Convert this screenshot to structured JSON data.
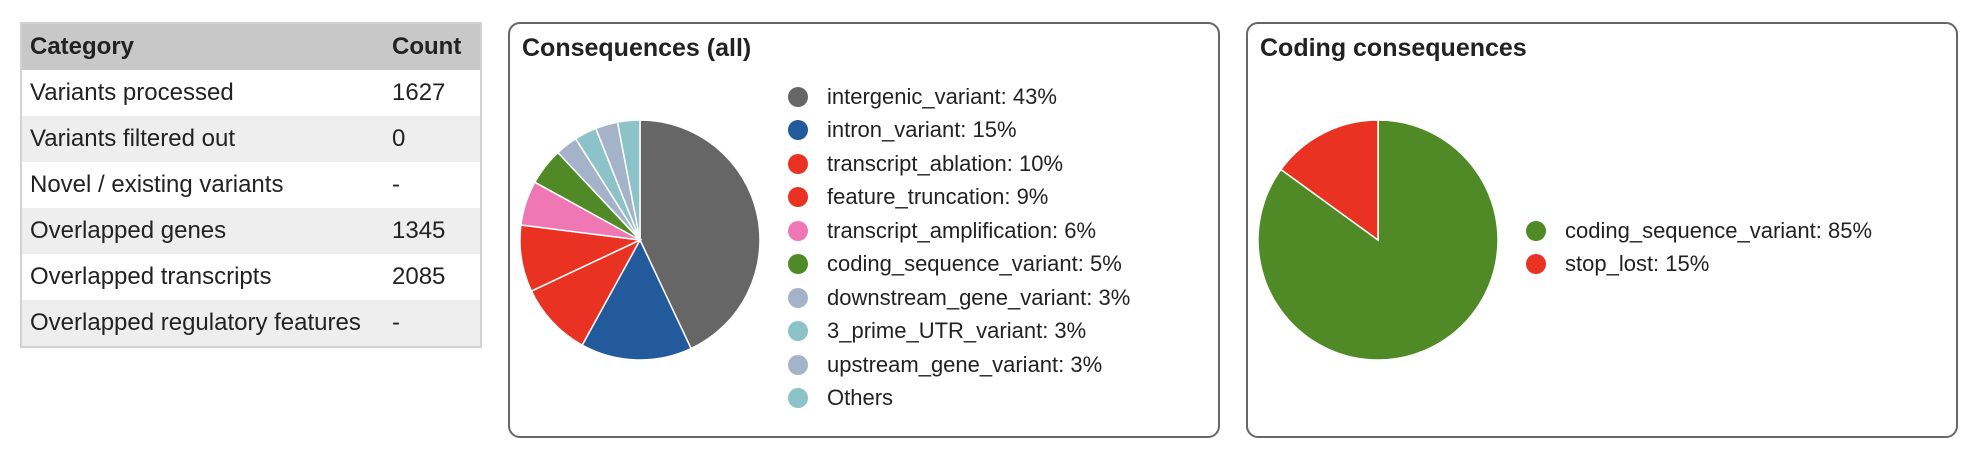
{
  "summary": {
    "headers": {
      "category": "Category",
      "count": "Count"
    },
    "rows": [
      {
        "label": "Variants processed",
        "value": "1627"
      },
      {
        "label": "Variants filtered out",
        "value": "0"
      },
      {
        "label": "Novel / existing variants",
        "value": "-"
      },
      {
        "label": "Overlapped genes",
        "value": "1345"
      },
      {
        "label": "Overlapped transcripts",
        "value": "2085"
      },
      {
        "label": "Overlapped regulatory features",
        "value": "-"
      }
    ]
  },
  "chart_data": [
    {
      "type": "pie",
      "title": "Consequences (all)",
      "slices": [
        {
          "label": "intergenic_variant: 43%",
          "value": 43,
          "color": "#666666"
        },
        {
          "label": "intron_variant: 15%",
          "value": 15,
          "color": "#225a9c"
        },
        {
          "label": "transcript_ablation: 10%",
          "value": 10,
          "color": "#ea3223"
        },
        {
          "label": "feature_truncation: 9%",
          "value": 9,
          "color": "#ea3223"
        },
        {
          "label": "transcript_amplification: 6%",
          "value": 6,
          "color": "#ef78b4"
        },
        {
          "label": "coding_sequence_variant: 5%",
          "value": 5,
          "color": "#508a27"
        },
        {
          "label": "downstream_gene_variant: 3%",
          "value": 3,
          "color": "#a5b3ca"
        },
        {
          "label": "3_prime_UTR_variant: 3%",
          "value": 3,
          "color": "#8cc3c9"
        },
        {
          "label": "upstream_gene_variant: 3%",
          "value": 3,
          "color": "#a5b3ca"
        },
        {
          "label": "Others",
          "value": 3,
          "color": "#8cc3c9"
        }
      ]
    },
    {
      "type": "pie",
      "title": "Coding consequences",
      "slices": [
        {
          "label": "coding_sequence_variant: 85%",
          "value": 85,
          "color": "#508a27"
        },
        {
          "label": "stop_lost: 15%",
          "value": 15,
          "color": "#ea3223"
        }
      ]
    }
  ]
}
